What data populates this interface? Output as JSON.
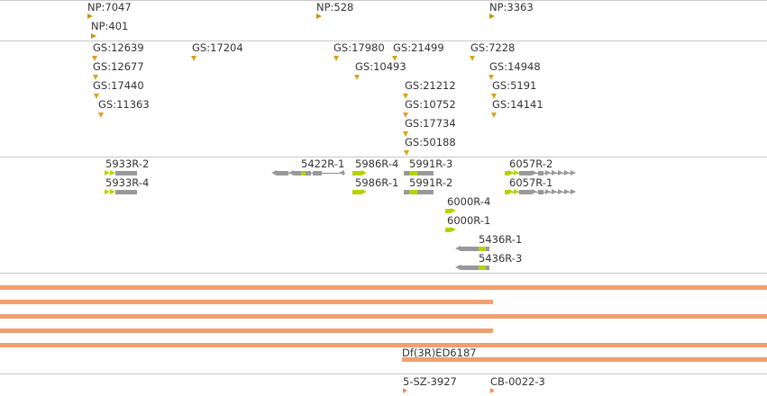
{
  "np_track": [
    "NP:7047",
    "NP:401",
    "NP:528",
    "NP:3363"
  ],
  "gs_track": [
    "GS:12639",
    "GS:12677",
    "GS:17440",
    "GS:11363",
    "GS:17204",
    "GS:17980",
    "GS:10493",
    "GS:21499",
    "GS:21212",
    "GS:10752",
    "GS:17734",
    "GS:50188",
    "GS:7228",
    "GS:14948",
    "GS:5191",
    "GS:14141"
  ],
  "gene_track": [
    "5933R-2",
    "5933R-4",
    "5422R-1",
    "5986R-4",
    "5986R-1",
    "5991R-3",
    "5991R-2",
    "6000R-4",
    "6000R-1",
    "6057R-2",
    "6057R-1",
    "5436R-1",
    "5436R-3"
  ],
  "deficiency_track": [
    "Df(3R)ED6187"
  ],
  "bottom_track": [
    "5-SZ-3927",
    "CB-0022-3"
  ],
  "colors": {
    "np_marker": "#c8960a",
    "gs_marker": "#d9a21c",
    "gene_body": "#999999",
    "gene_utr": "#b8d200",
    "deficiency_bar": "#f0a070",
    "separator": "#c8c8c8"
  }
}
